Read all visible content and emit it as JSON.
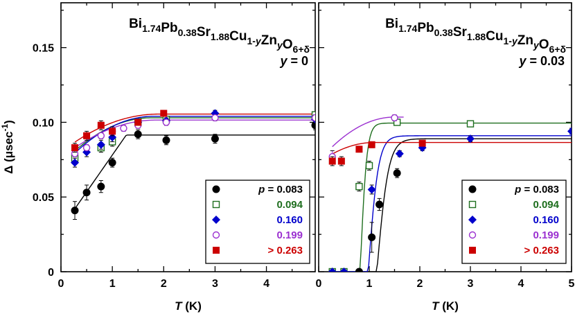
{
  "chart_data": [
    {
      "type": "scatter",
      "title": "Bi1.74Pb0.38Sr1.88Cu1-yZnyO6+δ",
      "formula": {
        "parts": [
          {
            "t": "Bi",
            "sub": "1.74"
          },
          {
            "t": "Pb",
            "sub": "0.38"
          },
          {
            "t": "Sr",
            "sub": "1.88"
          },
          {
            "t": "Cu",
            "sub": "1-y"
          },
          {
            "t": "Zn",
            "sub": "y"
          },
          {
            "t": "O",
            "sub": "6+δ"
          }
        ]
      },
      "panel_label": "y = 0",
      "xlabel": "T (K)",
      "ylabel": "Δ (μsec-1)",
      "xlim": [
        0,
        4.95
      ],
      "ylim": [
        0,
        0.18
      ],
      "xticks": [
        0,
        1,
        2,
        3,
        4
      ],
      "yticks": [
        0,
        0.05,
        0.1,
        0.15
      ],
      "ytick_labels": [
        "0",
        "0.05",
        "0.10",
        "0.15"
      ],
      "legend_title": "p =",
      "series": [
        {
          "name": "0.083",
          "color": "#000000",
          "marker": "circle-filled",
          "x": [
            0.27,
            0.5,
            0.78,
            1.0,
            1.5,
            2.05,
            3.0,
            4.95
          ],
          "y": [
            0.041,
            0.053,
            0.057,
            0.073,
            0.092,
            0.088,
            0.089,
            0.098
          ],
          "err": [
            0.006,
            0.005,
            0.004,
            0.003,
            0.003,
            0.003,
            0.003,
            0.003
          ],
          "fit": {
            "kind": "linear-sat",
            "a": 0.0288,
            "b": 0.0493,
            "ymax": 0.0915
          }
        },
        {
          "name": "0.094",
          "color": "#1e6e1e",
          "marker": "square-open",
          "x": [
            0.27,
            0.78,
            1.0,
            1.5,
            2.05,
            4.95
          ],
          "y": [
            0.076,
            0.083,
            0.087,
            0.1,
            0.102,
            0.105
          ],
          "err": [
            0.003,
            0.003,
            0.003,
            0.002,
            0.002,
            0.002
          ],
          "fit": {
            "kind": "quad-sat",
            "ymin": 0.072,
            "ymax": 0.103,
            "t0": 1.75
          }
        },
        {
          "name": "0.160",
          "color": "#0000cc",
          "marker": "diamond-filled",
          "x": [
            0.27,
            0.5,
            0.78,
            1.0,
            1.5,
            2.05,
            3.0,
            4.95
          ],
          "y": [
            0.073,
            0.08,
            0.085,
            0.09,
            0.1,
            0.101,
            0.106,
            0.102
          ],
          "err": [
            0.003,
            0.003,
            0.003,
            0.003,
            0.002,
            0.002,
            0.002,
            0.002
          ],
          "fit": {
            "kind": "quad-sat",
            "ymin": 0.07,
            "ymax": 0.104,
            "t0": 1.8
          }
        },
        {
          "name": "0.199",
          "color": "#9b30d0",
          "marker": "circle-open",
          "x": [
            0.27,
            0.5,
            0.78,
            1.0,
            1.22,
            1.5,
            2.05,
            3.0,
            4.95
          ],
          "y": [
            0.079,
            0.083,
            0.091,
            0.094,
            0.096,
            0.098,
            0.1,
            0.103,
            0.103
          ],
          "err": [
            0.002,
            0.002,
            0.002,
            0.002,
            0.002,
            0.002,
            0.002,
            0.002,
            0.002
          ],
          "fit": {
            "kind": "quad-sat",
            "ymin": 0.076,
            "ymax": 0.1015,
            "t0": 1.85
          }
        },
        {
          "name": "> 0.263",
          "color": "#cc0000",
          "marker": "square-filled",
          "x": [
            0.27,
            0.5,
            0.78,
            1.0,
            1.5,
            2.0
          ],
          "y": [
            0.083,
            0.091,
            0.098,
            0.094,
            0.1,
            0.106
          ],
          "err": [
            0.003,
            0.003,
            0.003,
            0.003,
            0.002,
            0.002
          ],
          "fit": {
            "kind": "quad-sat",
            "ymin": 0.08,
            "ymax": 0.1055,
            "t0": 1.9
          }
        }
      ]
    },
    {
      "type": "scatter",
      "title": "Bi1.74Pb0.38Sr1.88Cu1-yZnyO6+δ",
      "formula": {
        "parts": [
          {
            "t": "Bi",
            "sub": "1.74"
          },
          {
            "t": "Pb",
            "sub": "0.38"
          },
          {
            "t": "Sr",
            "sub": "1.88"
          },
          {
            "t": "Cu",
            "sub": "1-y"
          },
          {
            "t": "Zn",
            "sub": "y"
          },
          {
            "t": "O",
            "sub": "6+δ"
          }
        ]
      },
      "panel_label": "y = 0.03",
      "xlabel": "T (K)",
      "ylabel": "",
      "xlim": [
        0,
        5
      ],
      "ylim": [
        0,
        0.18
      ],
      "xticks": [
        0,
        1,
        2,
        3,
        4,
        5
      ],
      "yticks": [
        0,
        0.05,
        0.1,
        0.15
      ],
      "legend_title": "p =",
      "series": [
        {
          "name": "0.083",
          "color": "#000000",
          "marker": "circle-filled",
          "x": [
            0.8,
            1.05,
            1.2,
            1.55
          ],
          "y": [
            0.0,
            0.023,
            0.045,
            0.066
          ],
          "err": [
            0.001,
            0.01,
            0.004,
            0.003
          ],
          "fit": {
            "kind": "tanh",
            "t0": 1.15,
            "w": 0.23,
            "ymax": 0.089
          }
        },
        {
          "name": "0.094",
          "color": "#1e6e1e",
          "marker": "square-open",
          "x": [
            0.27,
            0.5,
            0.8,
            1.0,
            1.55,
            3.0
          ],
          "y": [
            0.0,
            0.0,
            0.057,
            0.071,
            0.1,
            0.099
          ],
          "err": [
            0.001,
            0.001,
            0.003,
            0.003,
            0.002,
            0.002
          ],
          "fit": {
            "kind": "tanh",
            "t0": 0.82,
            "w": 0.13,
            "ymax": 0.0995
          }
        },
        {
          "name": "0.160",
          "color": "#0000cc",
          "marker": "diamond-filled",
          "x": [
            0.27,
            0.5,
            1.05,
            1.6,
            2.05,
            3.0,
            5.0
          ],
          "y": [
            0.0,
            0.0,
            0.055,
            0.079,
            0.083,
            0.089,
            0.094
          ],
          "err": [
            0.001,
            0.001,
            0.003,
            0.002,
            0.002,
            0.002,
            0.002
          ],
          "fit": {
            "kind": "tanh",
            "t0": 0.98,
            "w": 0.2,
            "ymax": 0.091
          }
        },
        {
          "name": "0.199",
          "color": "#9b30d0",
          "marker": "circle-open",
          "x": [
            0.27,
            1.5
          ],
          "y": [
            0.077,
            0.103
          ],
          "err": [
            0.004,
            0.002
          ],
          "fit": {
            "kind": "quad-sat",
            "ymin": 0.074,
            "ymax": 0.1035,
            "t0": 1.5,
            "tend": 1.68
          }
        },
        {
          "name": "> 0.263",
          "color": "#cc0000",
          "marker": "square-filled",
          "x": [
            0.27,
            0.45,
            0.8,
            1.05,
            2.05
          ],
          "y": [
            0.074,
            0.074,
            0.082,
            0.085,
            0.086
          ],
          "err": [
            0.003,
            0.003,
            0.002,
            0.002,
            0.002
          ],
          "fit": {
            "kind": "quad-sat",
            "ymin": 0.073,
            "ymax": 0.0865,
            "t0": 1.1
          }
        }
      ]
    }
  ]
}
